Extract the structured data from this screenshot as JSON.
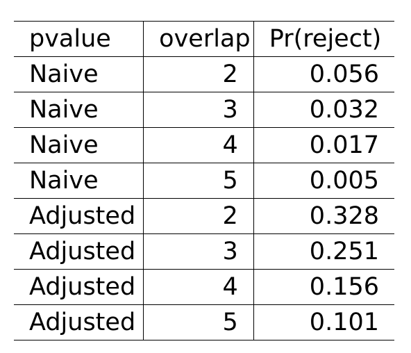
{
  "table": {
    "headers": {
      "pvalue": "pvalue",
      "overlap": "overlap",
      "reject": "Pr(reject)"
    },
    "rows": [
      {
        "pvalue": "Naive",
        "overlap": "2",
        "reject": "0.056"
      },
      {
        "pvalue": "Naive",
        "overlap": "3",
        "reject": "0.032"
      },
      {
        "pvalue": "Naive",
        "overlap": "4",
        "reject": "0.017"
      },
      {
        "pvalue": "Naive",
        "overlap": "5",
        "reject": "0.005"
      },
      {
        "pvalue": "Adjusted",
        "overlap": "2",
        "reject": "0.328"
      },
      {
        "pvalue": "Adjusted",
        "overlap": "3",
        "reject": "0.251"
      },
      {
        "pvalue": "Adjusted",
        "overlap": "4",
        "reject": "0.156"
      },
      {
        "pvalue": "Adjusted",
        "overlap": "5",
        "reject": "0.101"
      }
    ]
  }
}
